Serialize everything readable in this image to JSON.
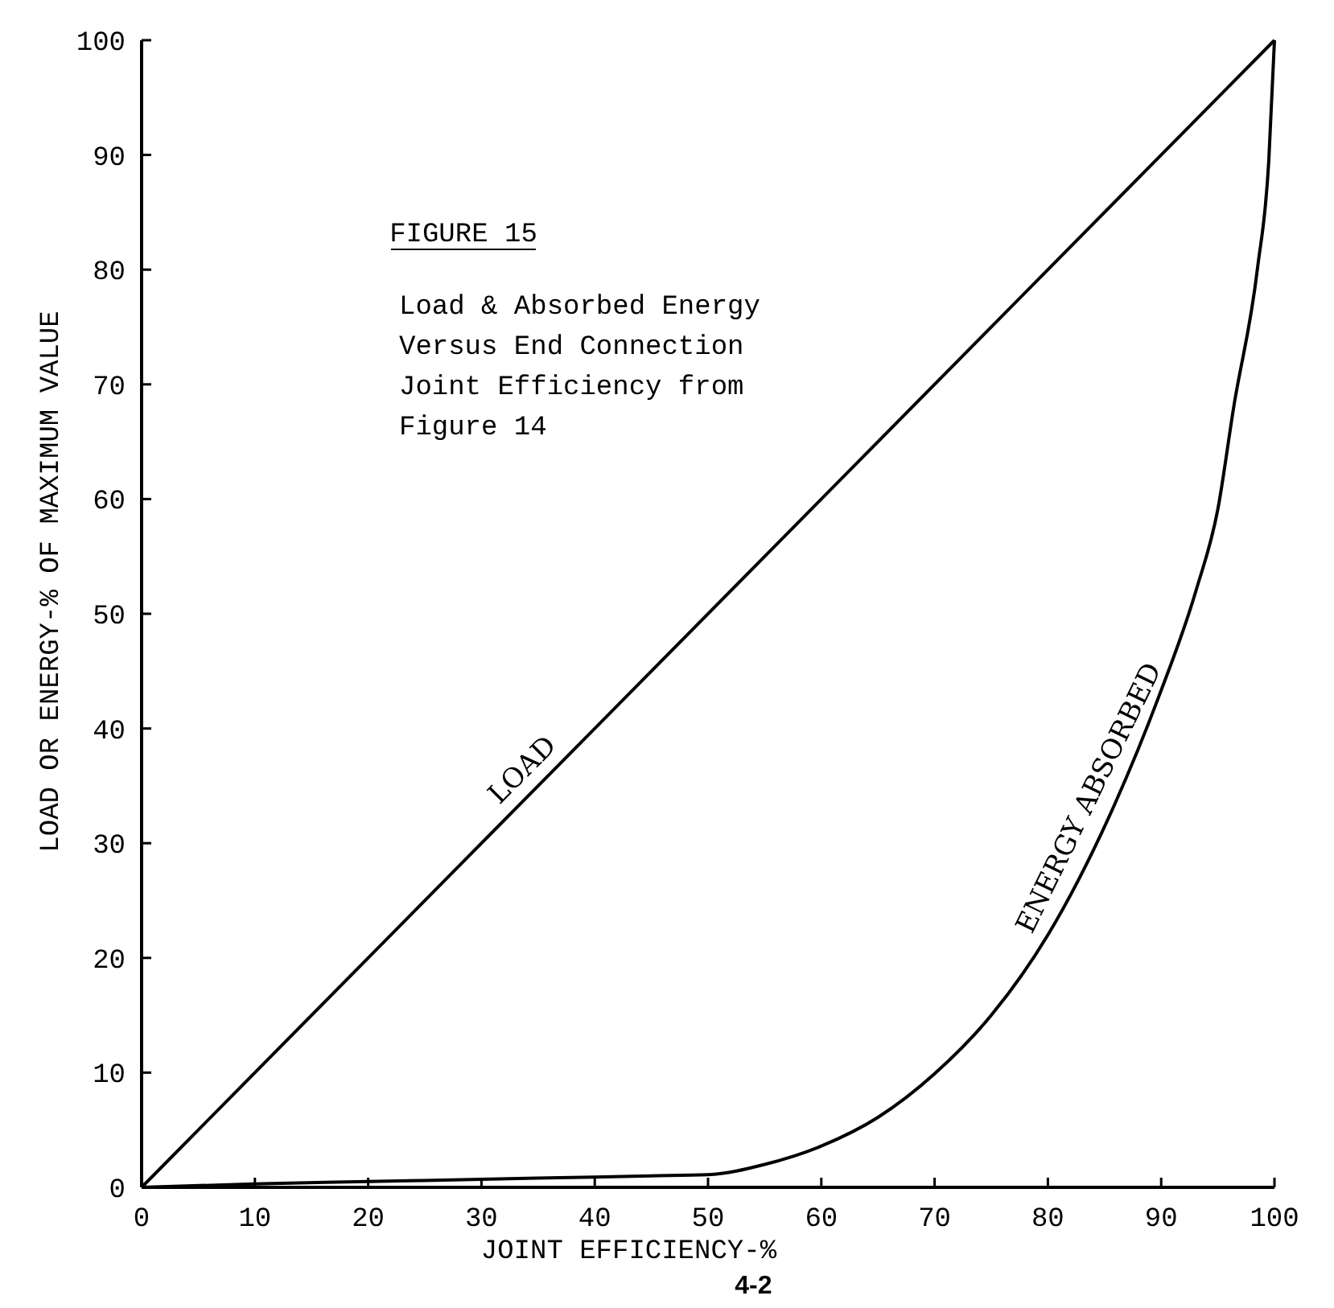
{
  "chart_data": {
    "type": "line",
    "title": "FIGURE 15",
    "subtitle": "Load & Absorbed Energy Versus End Connection Joint Efficiency from Figure 14",
    "xlabel": "JOINT EFFICIENCY-%",
    "ylabel": "LOAD OR ENERGY-% OF MAXIMUM VALUE",
    "annotations": [
      "4-2"
    ],
    "xlim": [
      0,
      100
    ],
    "ylim": [
      0,
      100
    ],
    "xticks": [
      0,
      10,
      20,
      30,
      40,
      50,
      60,
      70,
      80,
      90,
      100
    ],
    "yticks": [
      0,
      10,
      20,
      30,
      40,
      50,
      60,
      70,
      80,
      90,
      100
    ],
    "grid": false,
    "marker": "none",
    "line_style": "solid",
    "series": [
      {
        "name": "LOAD",
        "color": "#000000",
        "x": [
          0,
          100
        ],
        "values": [
          0,
          100
        ]
      },
      {
        "name": "ENERGY ABSORBED",
        "color": "#000000",
        "x": [
          0,
          10,
          20,
          30,
          40,
          45,
          50,
          55,
          60,
          65,
          70,
          75,
          80,
          82.7,
          85.9,
          89.8,
          93.1,
          95,
          96.4,
          98.5,
          99.5,
          100
        ],
        "values": [
          0,
          0.3,
          0.5,
          0.7,
          0.9,
          1,
          1.1,
          2,
          3.6,
          6.1,
          9.9,
          15,
          22,
          26.8,
          33.4,
          42.8,
          52.1,
          59.1,
          68,
          80.1,
          89.5,
          100
        ]
      }
    ]
  }
}
